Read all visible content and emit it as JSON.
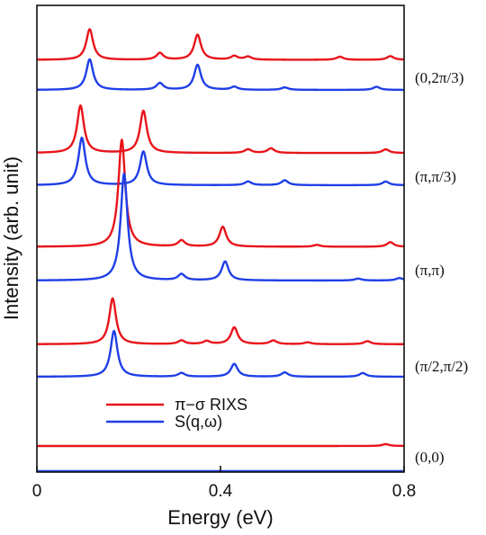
{
  "chart_data": {
    "type": "line",
    "title": "",
    "xlabel": "Energy (eV)",
    "ylabel": "Intensity (arb. unit)",
    "xlim": [
      0,
      0.8
    ],
    "x_ticks": [
      {
        "value": 0,
        "label": "0"
      },
      {
        "value": 0.4,
        "label": "0.4"
      },
      {
        "value": 0.8,
        "label": "0.8"
      }
    ],
    "legend": {
      "position": "lower-center",
      "entries": [
        {
          "key": "rixs",
          "label": "π−σ RIXS",
          "color": "#e8141b"
        },
        {
          "key": "s",
          "label": "S(q,ω)",
          "color": "#1f3fe6"
        }
      ]
    },
    "colors": {
      "rixs": "#e8141b",
      "s": "#1f3fe6",
      "axis": "#111111"
    },
    "peak_width": 0.009,
    "groups": [
      {
        "q": "(0,2π/3)",
        "rixs": {
          "baseline": 0.16,
          "peaks": [
            [
              0.115,
              1.0
            ],
            [
              0.268,
              0.22
            ],
            [
              0.35,
              0.82
            ],
            [
              0.43,
              0.12
            ],
            [
              0.46,
              0.1
            ],
            [
              0.66,
              0.1
            ],
            [
              0.77,
              0.12
            ]
          ]
        },
        "s": {
          "baseline": 0.0,
          "peaks": [
            [
              0.115,
              1.0
            ],
            [
              0.268,
              0.22
            ],
            [
              0.35,
              0.82
            ],
            [
              0.43,
              0.1
            ],
            [
              0.54,
              0.08
            ],
            [
              0.74,
              0.1
            ]
          ]
        }
      },
      {
        "q": "(π,π/3)",
        "rixs": {
          "baseline": 0.2,
          "peaks": [
            [
              0.095,
              1.55
            ],
            [
              0.232,
              1.38
            ],
            [
              0.46,
              0.12
            ],
            [
              0.51,
              0.15
            ],
            [
              0.76,
              0.12
            ]
          ]
        },
        "s": {
          "baseline": 0.0,
          "peaks": [
            [
              0.098,
              1.55
            ],
            [
              0.232,
              1.1
            ],
            [
              0.46,
              0.12
            ],
            [
              0.54,
              0.16
            ],
            [
              0.76,
              0.12
            ]
          ]
        }
      },
      {
        "q": "(π,π)",
        "rixs": {
          "baseline": 0.28,
          "peaks": [
            [
              0.185,
              3.5
            ],
            [
              0.315,
              0.2
            ],
            [
              0.405,
              0.65
            ],
            [
              0.61,
              0.06
            ],
            [
              0.77,
              0.15
            ]
          ]
        },
        "s": {
          "baseline": 0.0,
          "peaks": [
            [
              0.19,
              3.5
            ],
            [
              0.315,
              0.2
            ],
            [
              0.41,
              0.62
            ],
            [
              0.7,
              0.06
            ],
            [
              0.79,
              0.08
            ]
          ]
        }
      },
      {
        "q": "(π/2,π/2)",
        "rixs": {
          "baseline": 0.24,
          "peaks": [
            [
              0.165,
              1.5
            ],
            [
              0.315,
              0.12
            ],
            [
              0.37,
              0.1
            ],
            [
              0.43,
              0.55
            ],
            [
              0.515,
              0.12
            ],
            [
              0.59,
              0.06
            ],
            [
              0.72,
              0.1
            ]
          ]
        },
        "s": {
          "baseline": 0.0,
          "peaks": [
            [
              0.168,
              1.5
            ],
            [
              0.315,
              0.12
            ],
            [
              0.43,
              0.42
            ],
            [
              0.54,
              0.14
            ],
            [
              0.71,
              0.12
            ]
          ]
        }
      },
      {
        "q": "(0,0)",
        "rixs": {
          "baseline": 0.0,
          "peaks": [
            [
              0.76,
              0.06
            ]
          ]
        },
        "s": {
          "baseline": 0.0,
          "peaks": []
        }
      }
    ]
  }
}
